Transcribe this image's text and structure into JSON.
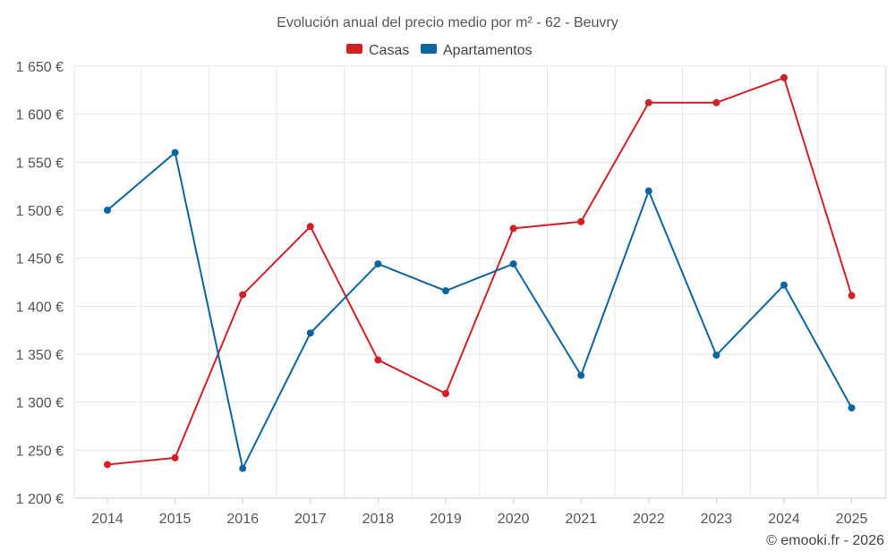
{
  "chart_data": {
    "type": "line",
    "title": "Evolución anual del precio medio por m² - 62 - Beuvry",
    "categories": [
      "2014",
      "2015",
      "2016",
      "2017",
      "2018",
      "2019",
      "2020",
      "2021",
      "2022",
      "2023",
      "2024",
      "2025"
    ],
    "series": [
      {
        "name": "Casas",
        "color": "#d32027",
        "values": [
          1235,
          1242,
          1412,
          1483,
          1344,
          1309,
          1481,
          1488,
          1612,
          1612,
          1638,
          1411
        ]
      },
      {
        "name": "Apartamentos",
        "color": "#0b66a0",
        "values": [
          1500,
          1560,
          1231,
          1372,
          1444,
          1416,
          1444,
          1328,
          1520,
          1349,
          1422,
          1294
        ]
      }
    ],
    "ylim": [
      1200,
      1650
    ],
    "yticks": [
      1200,
      1250,
      1300,
      1350,
      1400,
      1450,
      1500,
      1550,
      1600,
      1650
    ],
    "ytick_labels": [
      "1 200 €",
      "1 250 €",
      "1 300 €",
      "1 350 €",
      "1 400 €",
      "1 450 €",
      "1 500 €",
      "1 550 €",
      "1 600 €",
      "1 650 €"
    ],
    "xlabel": "",
    "ylabel": "",
    "grid": true,
    "legend_position": "top-center",
    "credit": "© emooki.fr - 2026"
  }
}
